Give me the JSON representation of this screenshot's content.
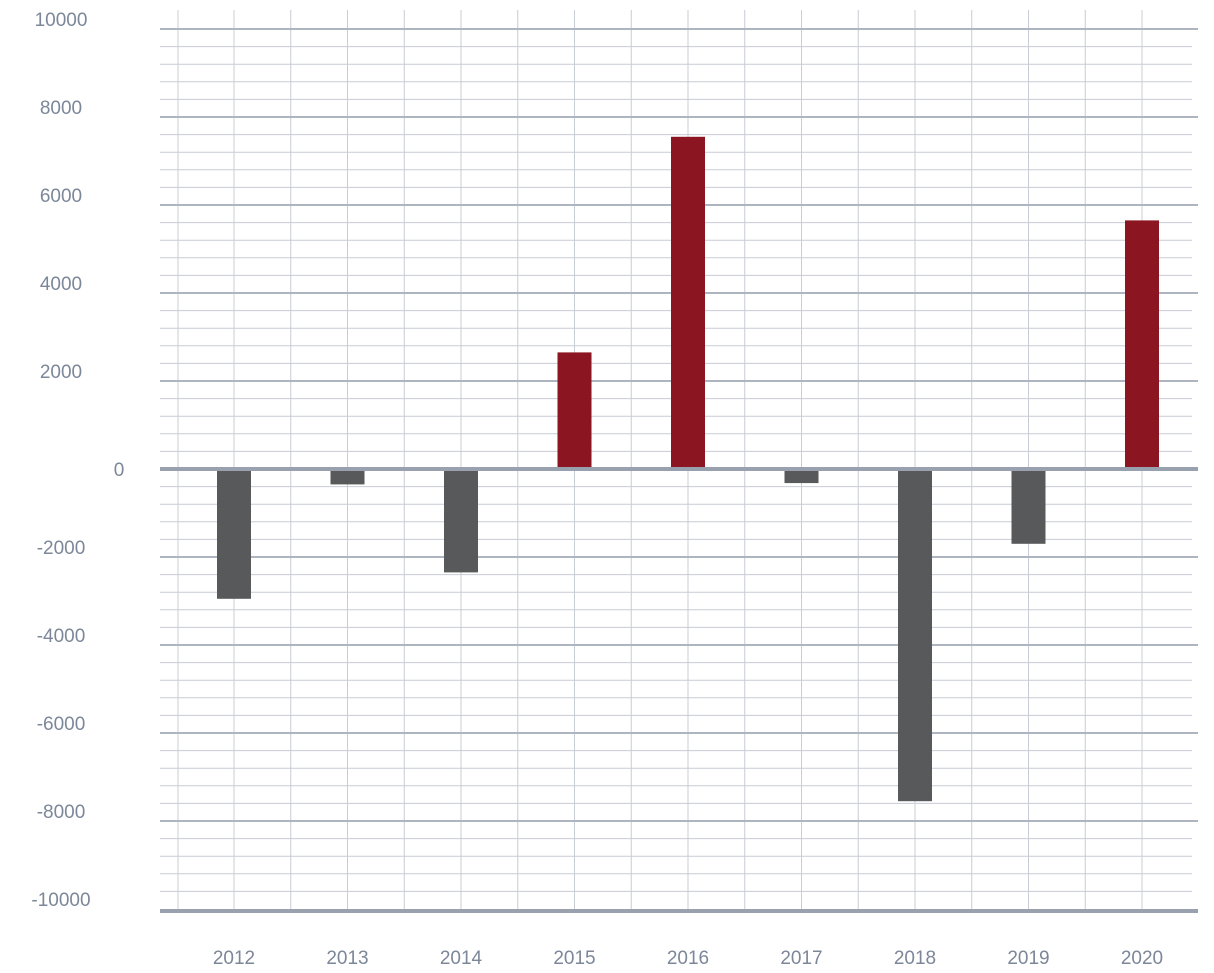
{
  "chart_data": {
    "type": "bar",
    "title": "",
    "xlabel": "",
    "ylabel": "",
    "categories": [
      "2012",
      "2013",
      "2014",
      "2015",
      "2016",
      "2017",
      "2018",
      "2019",
      "2020"
    ],
    "values": [
      -2950,
      -350,
      -2350,
      2650,
      7550,
      -320,
      -7550,
      -1700,
      5650
    ],
    "ylim": [
      -10000,
      10000
    ],
    "yticks": [
      10000,
      8000,
      6000,
      4000,
      2000,
      0,
      -2000,
      -4000,
      -6000,
      -8000,
      -10000
    ],
    "ytick_labels": [
      "10000",
      "8000",
      "6000",
      "4000",
      "2000",
      "0",
      "-2000",
      "-4000",
      "-6000",
      "-8000",
      "-10000"
    ],
    "grid": true,
    "legend": "none",
    "colors": {
      "positive": "#8b1520",
      "negative": "#58595b",
      "grid_major": "#aeb4c0",
      "grid_minor": "#c8ccd5",
      "axis": "#9aa1ae",
      "labels": "#7c8799"
    }
  }
}
